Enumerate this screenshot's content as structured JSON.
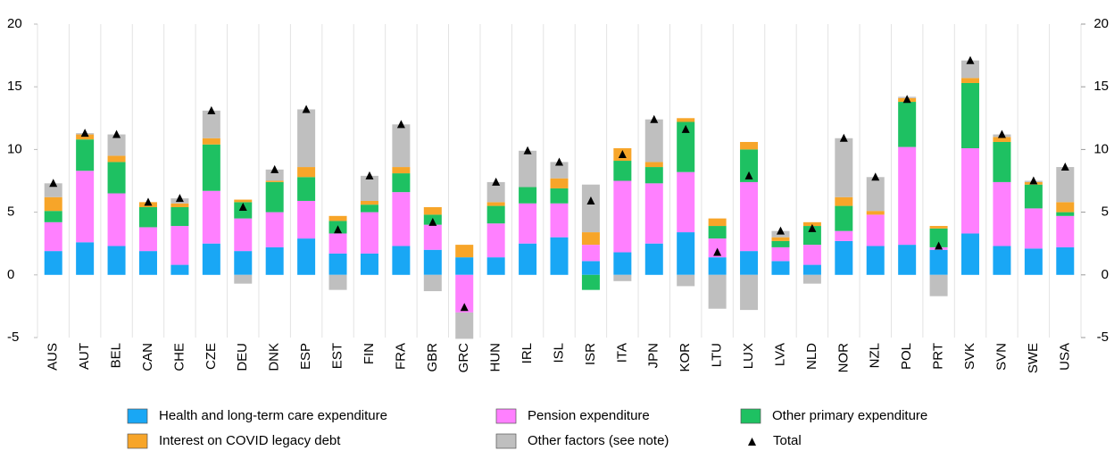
{
  "chart_data": {
    "type": "stacked-bar",
    "categories": [
      "AUS",
      "AUT",
      "BEL",
      "CAN",
      "CHE",
      "CZE",
      "DEU",
      "DNK",
      "ESP",
      "EST",
      "FIN",
      "FRA",
      "GBR",
      "GRC",
      "HUN",
      "IRL",
      "ISL",
      "ISR",
      "ITA",
      "JPN",
      "KOR",
      "LTU",
      "LUX",
      "LVA",
      "NLD",
      "NOR",
      "NZL",
      "POL",
      "PRT",
      "SVK",
      "SVN",
      "SWE",
      "USA"
    ],
    "series": [
      {
        "name": "Health and long-term care expenditure",
        "color": "#19a7f5",
        "values": [
          1.9,
          2.6,
          2.3,
          1.9,
          0.8,
          2.5,
          1.9,
          2.2,
          2.9,
          1.7,
          1.7,
          2.3,
          2.0,
          1.4,
          1.4,
          2.5,
          3.0,
          1.1,
          1.8,
          2.5,
          3.4,
          1.4,
          1.9,
          1.1,
          0.8,
          2.7,
          2.3,
          2.4,
          2.0,
          3.3,
          2.3,
          2.1,
          2.2
        ]
      },
      {
        "name": "Pension expenditure",
        "color": "#ff80ff",
        "values": [
          2.3,
          5.7,
          4.2,
          1.9,
          3.1,
          4.2,
          2.6,
          2.8,
          3.0,
          1.6,
          3.3,
          4.3,
          2.0,
          -3.0,
          2.7,
          3.2,
          2.7,
          1.3,
          5.7,
          4.8,
          4.8,
          1.5,
          5.5,
          1.1,
          1.6,
          0.8,
          2.5,
          7.8,
          0.2,
          6.8,
          5.1,
          3.2,
          2.5
        ]
      },
      {
        "name": "Other primary expenditure",
        "color": "#1ec162",
        "values": [
          0.9,
          2.5,
          2.5,
          1.6,
          1.5,
          3.7,
          1.3,
          2.4,
          1.9,
          1.0,
          0.6,
          1.5,
          0.8,
          0,
          1.4,
          1.3,
          1.2,
          -1.2,
          1.6,
          1.3,
          4.0,
          1.0,
          2.6,
          0.5,
          1.5,
          2.0,
          0,
          3.6,
          1.5,
          5.2,
          3.2,
          1.9,
          0.3
        ]
      },
      {
        "name": "Interest on COVID legacy debt",
        "color": "#f7a529",
        "values": [
          1.1,
          0.4,
          0.5,
          0.4,
          0.3,
          0.5,
          0.2,
          0.1,
          0.8,
          0.4,
          0.3,
          0.5,
          0.6,
          1.0,
          0.3,
          0,
          0.8,
          1.0,
          1.0,
          0.4,
          0.3,
          0.6,
          0.6,
          0.3,
          0.3,
          0.7,
          0.3,
          0.3,
          0.2,
          0.4,
          0.4,
          0.2,
          0.8
        ]
      },
      {
        "name": "Other factors (see note)",
        "color": "#bfbfbf",
        "values": [
          1.1,
          0.1,
          1.7,
          0,
          0.4,
          2.2,
          -0.7,
          0.9,
          4.6,
          -1.2,
          2.0,
          3.4,
          -1.3,
          -2.1,
          1.6,
          2.9,
          1.3,
          3.8,
          -0.5,
          3.4,
          -0.9,
          -2.7,
          -2.8,
          0.5,
          -0.7,
          4.7,
          2.7,
          0.1,
          -1.7,
          1.4,
          0.2,
          0.1,
          2.8
        ]
      }
    ],
    "total_series": {
      "name": "Total",
      "color": "#000000",
      "values": [
        7.3,
        11.3,
        11.2,
        5.8,
        6.1,
        13.1,
        5.4,
        8.4,
        13.2,
        3.6,
        7.9,
        12.0,
        4.2,
        -2.6,
        7.4,
        9.9,
        9.0,
        5.9,
        9.6,
        12.4,
        11.6,
        1.8,
        7.9,
        3.5,
        3.7,
        10.9,
        7.8,
        14.0,
        2.3,
        17.1,
        11.2,
        7.5,
        8.6
      ]
    },
    "ylim": [
      -5,
      20
    ],
    "yticks": [
      20,
      15,
      10,
      5,
      0,
      -5
    ],
    "y2lim": [
      -5,
      20
    ],
    "y2ticks": [
      20,
      15,
      10,
      5,
      0,
      -5
    ]
  }
}
